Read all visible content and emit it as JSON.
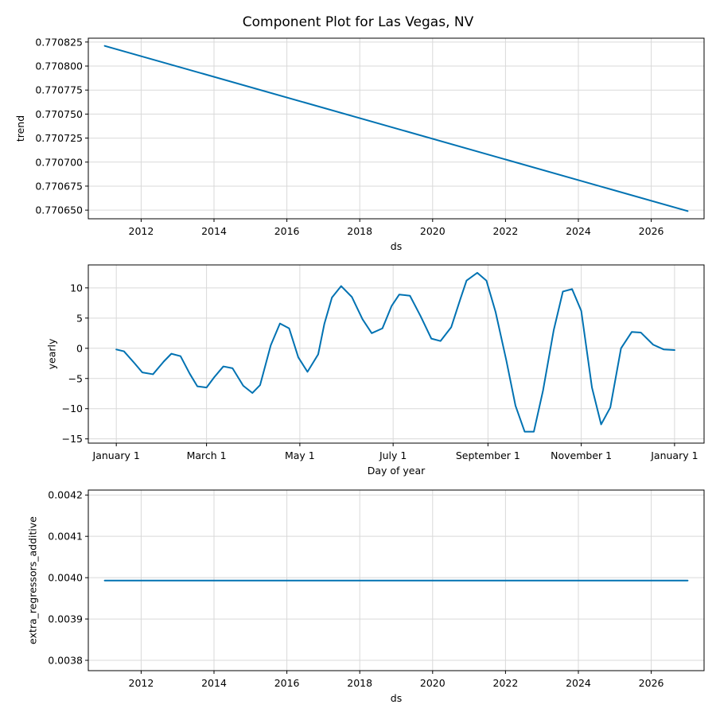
{
  "title": "Component Plot for Las Vegas, NV",
  "colors": {
    "line": "#0072B2",
    "grid": "#d9d9d9"
  },
  "chart_data": [
    {
      "id": "trend",
      "type": "line",
      "xlabel": "ds",
      "ylabel": "trend",
      "grid": true,
      "xlim": [
        2010.55,
        2027.45
      ],
      "ylim": [
        0.770641,
        0.770829
      ],
      "x_ticks": [
        2012,
        2014,
        2016,
        2018,
        2020,
        2022,
        2024,
        2026
      ],
      "x_tick_labels": [
        "2012",
        "2014",
        "2016",
        "2018",
        "2020",
        "2022",
        "2024",
        "2026"
      ],
      "y_ticks": [
        0.77065,
        0.770675,
        0.7707,
        0.770725,
        0.77075,
        0.770775,
        0.7708,
        0.770825
      ],
      "y_tick_labels": [
        "0.770650",
        "0.770675",
        "0.770700",
        "0.770725",
        "0.770750",
        "0.770775",
        "0.770800",
        "0.770825"
      ],
      "series": [
        {
          "x": [
            2011.0,
            2027.0
          ],
          "y": [
            0.770821,
            0.770649
          ]
        }
      ]
    },
    {
      "id": "yearly",
      "type": "line",
      "xlabel": "Day of year",
      "ylabel": "yearly",
      "grid": true,
      "xlim": [
        -18.3,
        384.3
      ],
      "ylim": [
        -15.7,
        13.8
      ],
      "x_ticks": [
        0,
        59,
        120,
        181,
        243,
        304,
        365
      ],
      "x_tick_labels": [
        "January 1",
        "March 1",
        "May 1",
        "July 1",
        "September 1",
        "November 1",
        "January 1"
      ],
      "y_ticks": [
        -15,
        -10,
        -5,
        0,
        5,
        10
      ],
      "y_tick_labels": [
        "−15",
        "−10",
        "−5",
        "0",
        "5",
        "10"
      ],
      "series": [
        {
          "x": [
            0,
            5,
            12,
            17,
            24,
            31,
            36,
            42,
            48,
            53,
            59,
            64,
            70,
            76,
            83,
            89,
            94,
            101,
            107,
            113,
            119,
            125,
            132,
            136,
            141,
            147,
            154,
            161,
            167,
            174,
            180,
            185,
            192,
            199,
            206,
            212,
            219,
            225,
            229,
            236,
            242,
            248,
            255,
            261,
            267,
            273,
            279,
            286,
            292,
            298,
            304,
            311,
            317,
            323,
            330,
            337,
            343,
            351,
            358,
            365
          ],
          "y": [
            -0.2,
            -0.5,
            -2.5,
            -4.0,
            -4.3,
            -2.2,
            -0.9,
            -1.3,
            -4.2,
            -6.3,
            -6.5,
            -4.8,
            -3.0,
            -3.3,
            -6.2,
            -7.4,
            -6.1,
            0.5,
            4.1,
            3.3,
            -1.5,
            -3.9,
            -1.0,
            4.0,
            8.4,
            10.3,
            8.5,
            4.8,
            2.5,
            3.3,
            7.0,
            8.9,
            8.7,
            5.3,
            1.6,
            1.2,
            3.5,
            8.2,
            11.2,
            12.5,
            11.2,
            6.0,
            -2.0,
            -9.5,
            -13.8,
            -13.8,
            -7.0,
            3.0,
            9.4,
            9.8,
            6.2,
            -6.5,
            -12.6,
            -9.8,
            0.0,
            2.7,
            2.6,
            0.6,
            -0.2,
            -0.3
          ]
        }
      ]
    },
    {
      "id": "extra_regressors_additive",
      "type": "line",
      "xlabel": "ds",
      "ylabel": "extra_regressors_additive",
      "grid": true,
      "xlim": [
        2010.55,
        2027.45
      ],
      "ylim": [
        0.003775,
        0.004212
      ],
      "x_ticks": [
        2012,
        2014,
        2016,
        2018,
        2020,
        2022,
        2024,
        2026
      ],
      "x_tick_labels": [
        "2012",
        "2014",
        "2016",
        "2018",
        "2020",
        "2022",
        "2024",
        "2026"
      ],
      "y_ticks": [
        0.0038,
        0.0039,
        0.004,
        0.0041,
        0.0042
      ],
      "y_tick_labels": [
        "0.0038",
        "0.0039",
        "0.0040",
        "0.0041",
        "0.0042"
      ],
      "series": [
        {
          "x": [
            2011.0,
            2027.0
          ],
          "y": [
            0.003993,
            0.003993
          ]
        }
      ]
    }
  ]
}
